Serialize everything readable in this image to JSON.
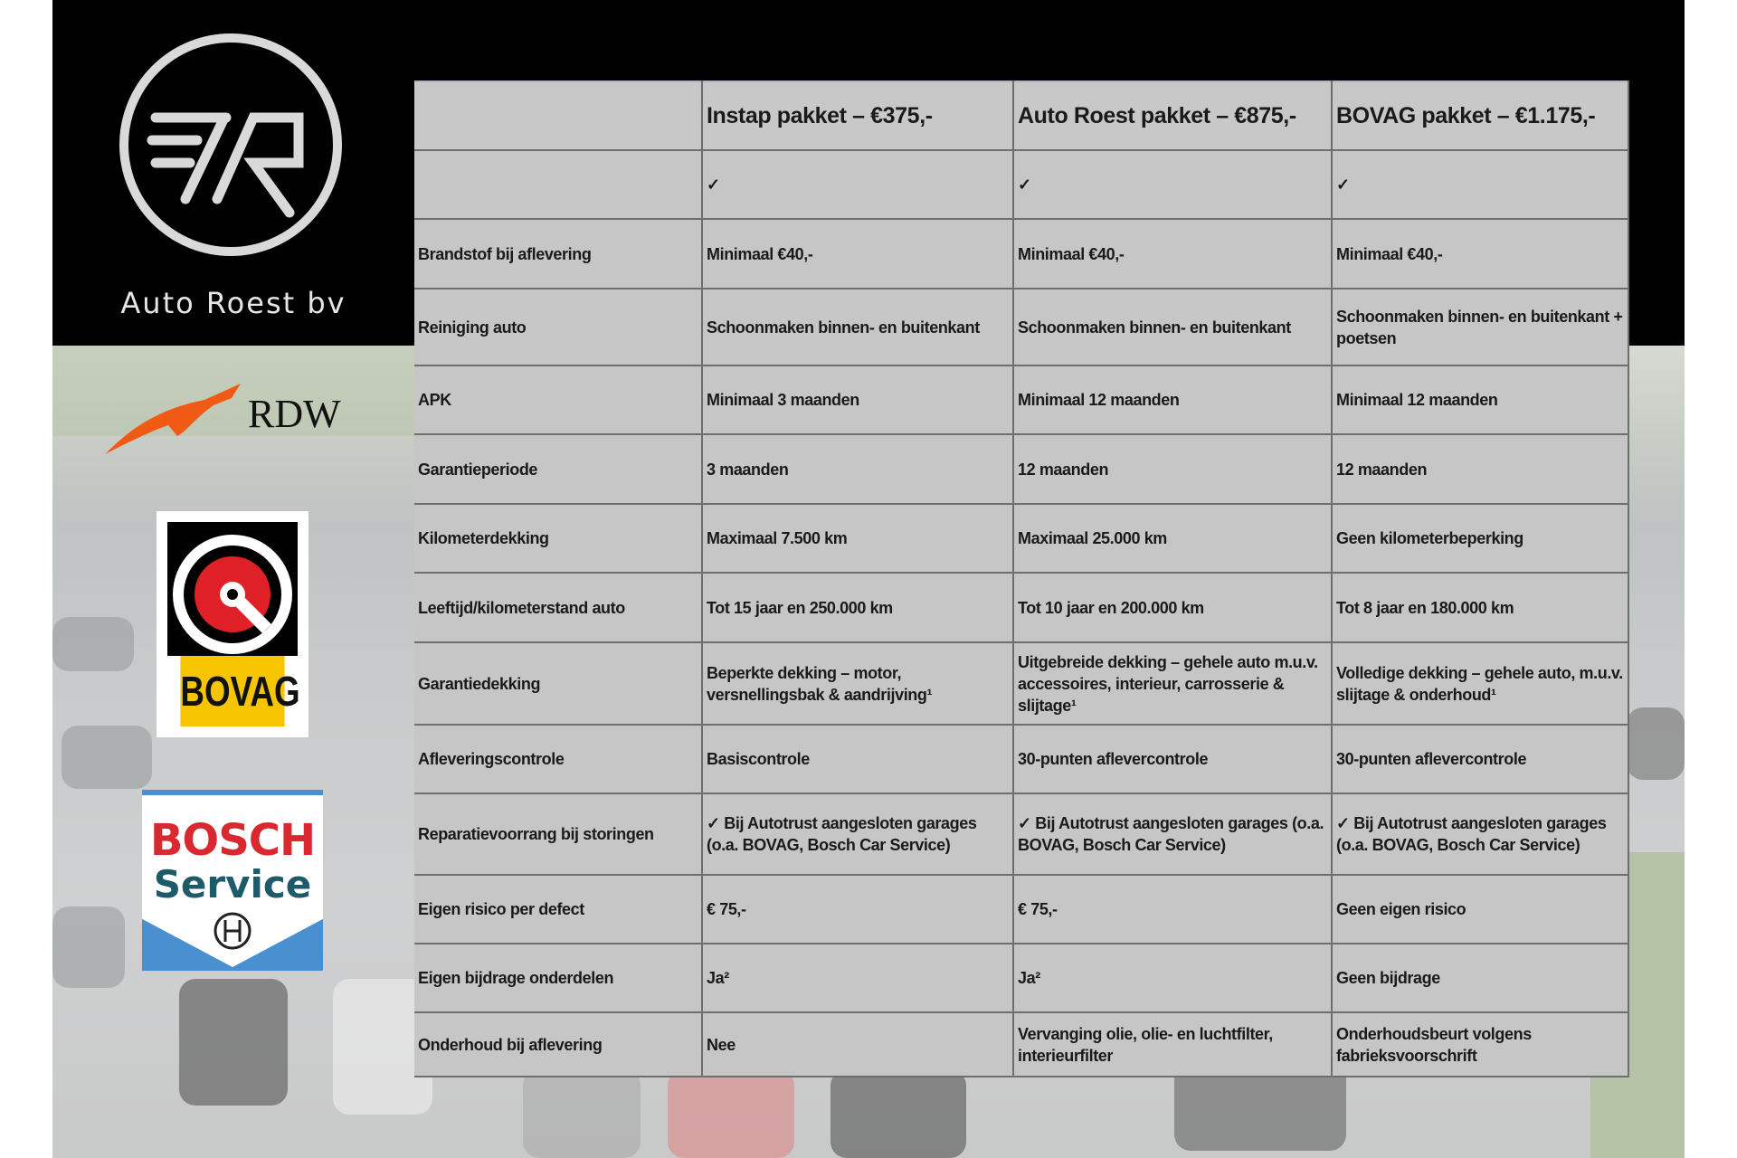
{
  "brand": {
    "name": "Auto Roest bv",
    "logo_letters": "7R"
  },
  "logos": {
    "rdw": "RDW",
    "bovag": "BOVAG",
    "bosch_top": "BOSCH",
    "bosch_bottom": "Service"
  },
  "colors": {
    "table_bg": "#c6c6c6",
    "border": "#6e6e6e",
    "rdw_orange": "#f05a14",
    "bovag_yellow": "#f7c400",
    "bovag_red": "#e02027",
    "bosch_red": "#d9282f",
    "bosch_blue": "#4a90d0"
  },
  "table": {
    "header": [
      "",
      "Instap pakket – €375,-",
      "Auto Roest pakket – €875,-",
      "BOVAG pakket – €1.175,-"
    ],
    "rows": [
      {
        "label": "",
        "values": [
          "✓",
          "✓",
          "✓"
        ]
      },
      {
        "label": "Brandstof bij aflevering",
        "values": [
          "Minimaal €40,-",
          "Minimaal €40,-",
          "Minimaal €40,-"
        ]
      },
      {
        "label": "Reiniging auto",
        "values": [
          "Schoonmaken binnen- en buitenkant",
          "Schoonmaken binnen- en buitenkant",
          "Schoonmaken binnen- en buitenkant + poetsen"
        ]
      },
      {
        "label": "APK",
        "values": [
          "Minimaal 3 maanden",
          "Minimaal 12 maanden",
          "Minimaal 12 maanden"
        ]
      },
      {
        "label": "Garantieperiode",
        "values": [
          "3 maanden",
          "12 maanden",
          "12 maanden"
        ]
      },
      {
        "label": "Kilometerdekking",
        "values": [
          "Maximaal 7.500 km",
          "Maximaal 25.000 km",
          "Geen kilometerbeperking"
        ]
      },
      {
        "label": "Leeftijd/kilometerstand auto",
        "values": [
          "Tot 15 jaar en 250.000 km",
          "Tot 10 jaar en 200.000 km",
          "Tot 8 jaar en 180.000 km"
        ]
      },
      {
        "label": "Garantiedekking",
        "values": [
          "Beperkte dekking – motor, versnellingsbak & aandrijving¹",
          "Uitgebreide dekking – gehele auto m.u.v. accessoires, interieur, carrosserie & slijtage¹",
          "Volledige dekking – gehele auto, m.u.v. slijtage & onderhoud¹"
        ]
      },
      {
        "label": "Afleveringscontrole",
        "values": [
          "Basiscontrole",
          "30-punten aflevercontrole",
          "30-punten aflevercontrole"
        ]
      },
      {
        "label": "Reparatievoorrang bij storingen",
        "values": [
          "✓ Bij Autotrust aangesloten garages (o.a. BOVAG, Bosch Car Service)",
          "✓ Bij Autotrust aangesloten garages (o.a. BOVAG, Bosch Car Service)",
          "✓ Bij Autotrust aangesloten garages (o.a. BOVAG, Bosch Car Service)"
        ]
      },
      {
        "label": "Eigen risico per defect",
        "values": [
          "€ 75,-",
          "€ 75,-",
          "Geen eigen risico"
        ]
      },
      {
        "label": "Eigen bijdrage onderdelen",
        "values": [
          "Ja²",
          "Ja²",
          "Geen bijdrage"
        ]
      },
      {
        "label": "Onderhoud bij aflevering",
        "values": [
          "Nee",
          "Vervanging olie, olie- en luchtfilter, interieurfilter",
          "Onderhoudsbeurt volgens fabrieksvoorschrift"
        ]
      }
    ]
  }
}
